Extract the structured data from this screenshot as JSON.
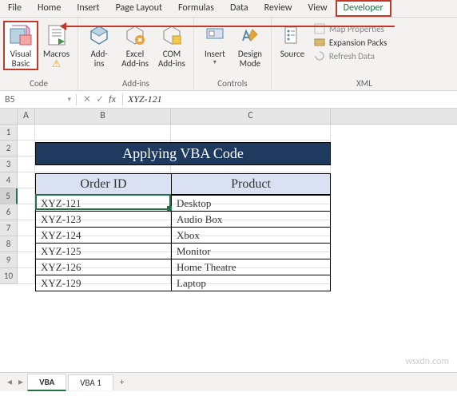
{
  "menu": {
    "file": "File",
    "home": "Home",
    "insert": "Insert",
    "page_layout": "Page Layout",
    "formulas": "Formulas",
    "data": "Data",
    "review": "Review",
    "view": "View",
    "developer": "Developer"
  },
  "ribbon": {
    "code": {
      "visual_basic": "Visual\nBasic",
      "macros": "Macros",
      "label": "Code"
    },
    "addins": {
      "addins": "Add-\nins",
      "excel_addins": "Excel\nAdd-ins",
      "com_addins": "COM\nAdd-ins",
      "label": "Add-ins"
    },
    "controls": {
      "insert": "Insert",
      "design_mode": "Design\nMode",
      "label": "Controls"
    },
    "xml": {
      "source": "Source",
      "map_props": "Map Properties",
      "expansion": "Expansion Packs",
      "refresh": "Refresh Data",
      "label": "XML"
    }
  },
  "namebox": "B5",
  "formula": "XYZ-121",
  "cols": {
    "a": "A",
    "b": "B",
    "c": "C"
  },
  "rows": [
    "1",
    "2",
    "3",
    "4",
    "5",
    "6",
    "7",
    "8",
    "9",
    "10"
  ],
  "title": "Applying VBA Code",
  "headers": {
    "order": "Order ID",
    "product": "Product"
  },
  "data": [
    {
      "id": "XYZ-121",
      "p": "Desktop"
    },
    {
      "id": "XYZ-123",
      "p": "Audio Box"
    },
    {
      "id": "XYZ-124",
      "p": "Xbox"
    },
    {
      "id": "XYZ-125",
      "p": "Monitor"
    },
    {
      "id": "XYZ-126",
      "p": "Home Theatre"
    },
    {
      "id": "XYZ-129",
      "p": "Laptop"
    }
  ],
  "tabs": {
    "vba": "VBA",
    "vba1": "VBA 1",
    "add": "+"
  },
  "watermark": "wsxdn.com",
  "colors": {
    "highlight": "#c0392b",
    "title_bg": "#1f3a5f",
    "header_bg": "#d9e1f2",
    "selection": "#217346",
    "ribbon_bg": "#f3f2f1"
  }
}
